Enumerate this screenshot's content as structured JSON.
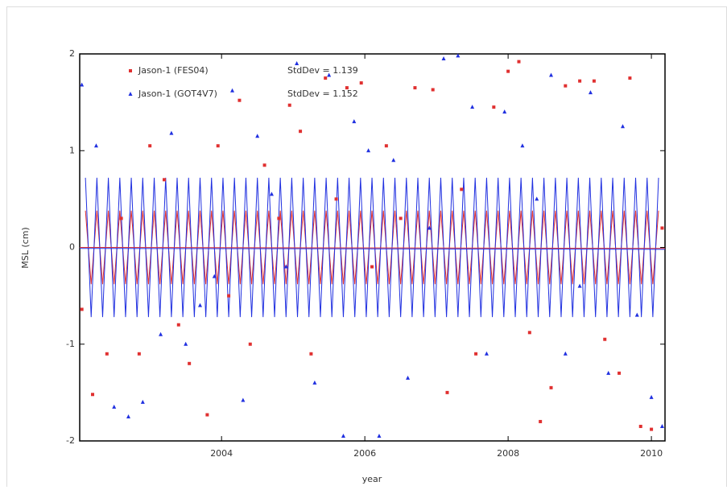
{
  "chart_data": {
    "type": "scatter",
    "xlabel": "year",
    "ylabel": "MSL (cm)",
    "xlim": [
      2002.02,
      2010.19
    ],
    "ylim": [
      -2,
      2
    ],
    "xticks": [
      2004,
      2006,
      2008,
      2010
    ],
    "yticks": [
      -2,
      -1,
      0,
      1,
      2
    ],
    "legend": "upper left",
    "x": [
      2002.1,
      2002.18,
      2002.26,
      2002.34,
      2002.42,
      2002.5,
      2002.58,
      2002.66,
      2002.74,
      2002.82,
      2002.9,
      2002.98,
      2003.06,
      2003.14,
      2003.22,
      2003.3,
      2003.38,
      2003.46,
      2003.54,
      2003.62,
      2003.7,
      2003.78,
      2003.86,
      2003.94,
      2004.02,
      2004.1,
      2004.18,
      2004.26,
      2004.34,
      2004.42,
      2004.5,
      2004.58,
      2004.66,
      2004.74,
      2004.82,
      2004.9,
      2004.98,
      2005.06,
      2005.14,
      2005.22,
      2005.3,
      2005.38,
      2005.46,
      2005.54,
      2005.62,
      2005.7,
      2005.78,
      2005.86,
      2005.94,
      2006.02,
      2006.1,
      2006.18,
      2006.26,
      2006.34,
      2006.42,
      2006.5,
      2006.58,
      2006.66,
      2006.74,
      2006.82,
      2006.9,
      2006.98,
      2007.06,
      2007.14,
      2007.22,
      2007.3,
      2007.38,
      2007.46,
      2007.54,
      2007.62,
      2007.7,
      2007.78,
      2007.86,
      2007.94,
      2008.02,
      2008.1,
      2008.18,
      2008.26,
      2008.34,
      2008.42,
      2008.5,
      2008.58,
      2008.66,
      2008.74,
      2008.82,
      2008.9,
      2008.98,
      2009.06,
      2009.14,
      2009.22,
      2009.3,
      2009.38,
      2009.46,
      2009.54,
      2009.62,
      2009.7,
      2009.78,
      2009.86,
      2009.94,
      2010.02,
      2010.1
    ],
    "series": [
      {
        "mode": "line",
        "color": "#e03030",
        "values": [
          0.38,
          -0.38,
          0.38,
          -0.38,
          0.38,
          -0.38,
          0.38,
          -0.38,
          0.38,
          -0.38,
          0.38,
          -0.38,
          0.38,
          -0.38,
          0.38,
          -0.38,
          0.38,
          -0.38,
          0.38,
          -0.38,
          0.38,
          -0.38,
          0.38,
          -0.38,
          0.38,
          -0.38,
          0.38,
          -0.38,
          0.38,
          -0.38,
          0.38,
          -0.38,
          0.38,
          -0.38,
          0.38,
          -0.38,
          0.38,
          -0.38,
          0.38,
          -0.38,
          0.38,
          -0.38,
          0.38,
          -0.38,
          0.38,
          -0.38,
          0.38,
          -0.38,
          0.38,
          -0.38,
          0.38,
          -0.38,
          0.38,
          -0.38,
          0.38,
          -0.38,
          0.38,
          -0.38,
          0.38,
          -0.38,
          0.38,
          -0.38,
          0.38,
          -0.38,
          0.38,
          -0.38,
          0.38,
          -0.38,
          0.38,
          -0.38,
          0.38,
          -0.38,
          0.38,
          -0.38,
          0.38,
          -0.38,
          0.38,
          -0.38,
          0.38,
          -0.38,
          0.38,
          -0.38,
          0.38,
          -0.38,
          0.38,
          -0.38,
          0.38,
          -0.38,
          0.38,
          -0.38,
          0.38,
          -0.38,
          0.38,
          -0.38,
          0.38,
          -0.38,
          0.38,
          -0.38,
          0.38,
          -0.38,
          0.38
        ]
      },
      {
        "mode": "line",
        "color": "#2030e0",
        "values": [
          0.72,
          -0.72,
          0.72,
          -0.72,
          0.72,
          -0.72,
          0.72,
          -0.72,
          0.72,
          -0.72,
          0.72,
          -0.72,
          0.72,
          -0.72,
          0.72,
          -0.72,
          0.72,
          -0.72,
          0.72,
          -0.72,
          0.72,
          -0.72,
          0.72,
          -0.72,
          0.72,
          -0.72,
          0.72,
          -0.72,
          0.72,
          -0.72,
          0.72,
          -0.72,
          0.72,
          -0.72,
          0.72,
          -0.72,
          0.72,
          -0.72,
          0.72,
          -0.72,
          0.72,
          -0.72,
          0.72,
          -0.72,
          0.72,
          -0.72,
          0.72,
          -0.72,
          0.72,
          -0.72,
          0.72,
          -0.72,
          0.72,
          -0.72,
          0.72,
          -0.72,
          0.72,
          -0.72,
          0.72,
          -0.72,
          0.72,
          -0.72,
          0.72,
          -0.72,
          0.72,
          -0.72,
          0.72,
          -0.72,
          0.72,
          -0.72,
          0.72,
          -0.72,
          0.72,
          -0.72,
          0.72,
          -0.72,
          0.72,
          -0.72,
          0.72,
          -0.72,
          0.72,
          -0.72,
          0.72,
          -0.72,
          0.72,
          -0.72,
          0.72,
          -0.72,
          0.72,
          -0.72,
          0.72,
          -0.72,
          0.72,
          -0.72,
          0.72,
          -0.72,
          0.72,
          -0.72,
          0.72,
          -0.72,
          0.72
        ]
      },
      {
        "mode": "line",
        "color": "#e03030",
        "x": [
          2002.02,
          2010.19
        ],
        "values": [
          0,
          -0.01
        ]
      },
      {
        "mode": "line",
        "color": "#2030e0",
        "x": [
          2002.02,
          2010.19
        ],
        "values": [
          -0.01,
          -0.02
        ]
      },
      {
        "mode": "markers",
        "marker": "square",
        "name": "Jason-1 (FES04)",
        "label": "StdDev = 1.139",
        "color": "#e03030",
        "x": [
          2002.05,
          2002.2,
          2002.4,
          2002.6,
          2002.85,
          2003.0,
          2003.2,
          2003.4,
          2003.55,
          2003.8,
          2003.95,
          2004.1,
          2004.25,
          2004.4,
          2004.6,
          2004.8,
          2004.95,
          2005.1,
          2005.25,
          2005.45,
          2005.6,
          2005.75,
          2005.95,
          2006.1,
          2006.3,
          2006.5,
          2006.7,
          2006.95,
          2007.15,
          2007.35,
          2007.55,
          2007.8,
          2008.0,
          2008.15,
          2008.3,
          2008.45,
          2008.6,
          2008.8,
          2009.0,
          2009.2,
          2009.35,
          2009.55,
          2009.7,
          2009.85,
          2010.0,
          2010.15
        ],
        "values": [
          -0.64,
          -1.52,
          -1.1,
          0.3,
          -1.1,
          1.05,
          0.7,
          -0.8,
          -1.2,
          -1.73,
          1.05,
          -0.5,
          1.52,
          -1.0,
          0.85,
          0.3,
          1.47,
          1.2,
          -1.1,
          1.75,
          0.5,
          1.65,
          1.7,
          -0.2,
          1.05,
          0.3,
          1.65,
          1.63,
          -1.5,
          0.6,
          -1.1,
          1.45,
          1.82,
          1.92,
          -0.88,
          -1.8,
          -1.45,
          1.67,
          1.72,
          1.72,
          -0.95,
          -1.3,
          1.75,
          -1.85,
          -1.88,
          0.2
        ]
      },
      {
        "mode": "markers",
        "marker": "triangle",
        "name": "Jason-1 (GOT4V7)",
        "label": "StdDev = 1.152",
        "color": "#2030e0",
        "x": [
          2002.05,
          2002.25,
          2002.5,
          2002.7,
          2002.9,
          2003.15,
          2003.3,
          2003.5,
          2003.7,
          2003.9,
          2004.15,
          2004.3,
          2004.5,
          2004.7,
          2004.9,
          2005.05,
          2005.3,
          2005.5,
          2005.7,
          2005.85,
          2006.05,
          2006.2,
          2006.4,
          2006.6,
          2006.9,
          2007.1,
          2007.3,
          2007.5,
          2007.7,
          2007.95,
          2008.2,
          2008.4,
          2008.6,
          2008.8,
          2009.0,
          2009.15,
          2009.4,
          2009.6,
          2009.8,
          2010.0,
          2010.15
        ],
        "values": [
          1.68,
          1.05,
          -1.65,
          -1.75,
          -1.6,
          -0.9,
          1.18,
          -1.0,
          -0.6,
          -0.3,
          1.62,
          -1.58,
          1.15,
          0.55,
          -0.2,
          1.9,
          -1.4,
          1.78,
          -1.95,
          1.3,
          1.0,
          -1.95,
          0.9,
          -1.35,
          0.2,
          1.95,
          1.98,
          1.45,
          -1.1,
          1.4,
          1.05,
          0.5,
          1.78,
          -1.1,
          -0.4,
          1.6,
          -1.3,
          1.25,
          -0.7,
          -1.55,
          -1.85
        ]
      }
    ]
  }
}
